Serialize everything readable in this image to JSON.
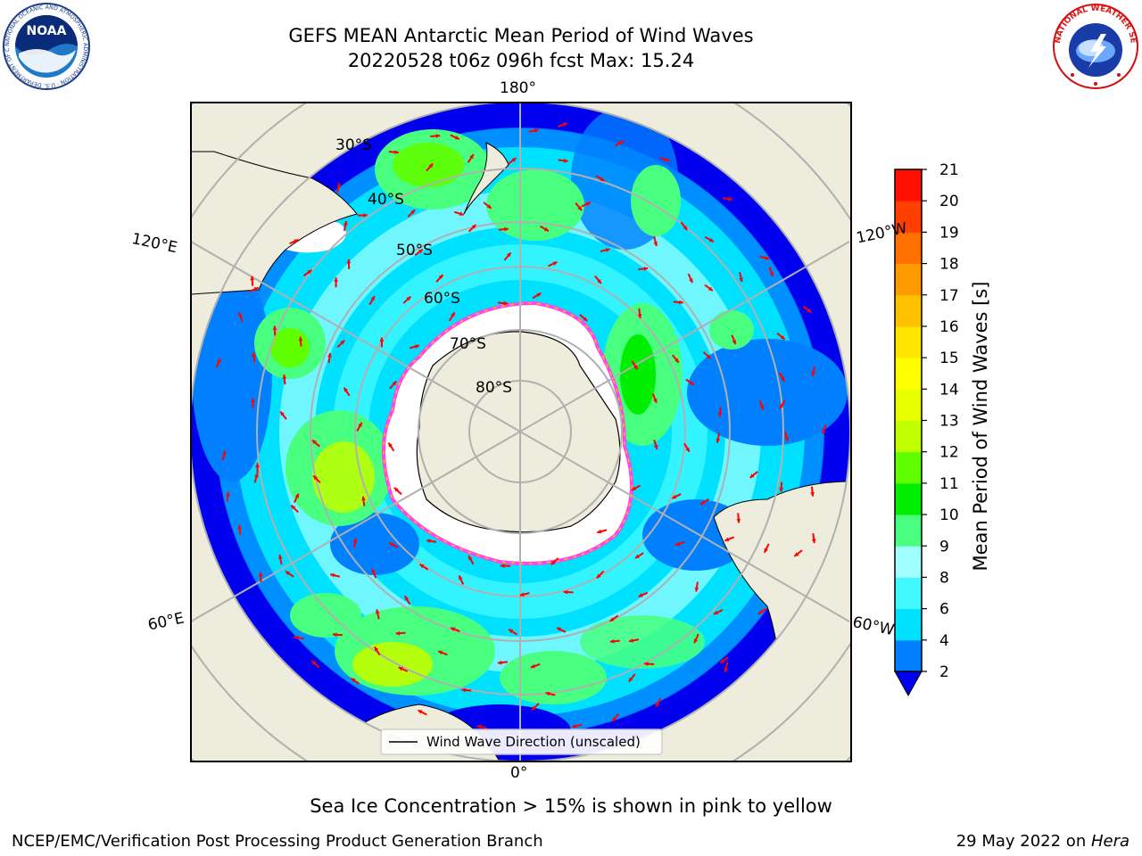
{
  "header": {
    "title_line1": "GEFS MEAN Antarctic Mean Period of Wind Waves",
    "title_line2": "20220528 t06z 096h fcst   Max: 15.24"
  },
  "logos": {
    "left": {
      "name": "noaa-logo",
      "text": "NOAA",
      "ring_text": "NATIONAL OCEANIC AND ATMOSPHERIC ADMINISTRATION · U.S. DEPARTMENT OF COMMERCE"
    },
    "right": {
      "name": "nws-logo",
      "ring_text": "NATIONAL WEATHER SERVICE"
    }
  },
  "map": {
    "longitude_labels": {
      "top": "180°",
      "bottom": "0°",
      "left_upper": "120°E",
      "left_lower": "60°E",
      "right_upper": "120°W",
      "right_lower": "60°W"
    },
    "latitude_labels": [
      "30°S",
      "40°S",
      "50°S",
      "60°S",
      "70°S",
      "80°S"
    ],
    "legend_label": "Wind Wave Direction (unscaled)",
    "colors": {
      "land": "#eeecdc",
      "ice": "#ffffff",
      "ice_edge": "#ff44ee",
      "grid": "#b0b0b0",
      "arrow": "#ff0000"
    }
  },
  "colorbar": {
    "label": "Mean Period of Wind Waves [s]",
    "ticks": [
      "2",
      "4",
      "6",
      "8",
      "9",
      "10",
      "11",
      "12",
      "13",
      "14",
      "15",
      "16",
      "17",
      "18",
      "19",
      "20",
      "21"
    ],
    "colors": [
      "#0000ee",
      "#0080ff",
      "#00e0ff",
      "#40f8ff",
      "#a0ffff",
      "#48ff80",
      "#00ee00",
      "#60ff00",
      "#c0ff00",
      "#e8ff00",
      "#ffff00",
      "#ffe600",
      "#ffc000",
      "#ff9a00",
      "#ff7000",
      "#ff4000",
      "#ff1000"
    ]
  },
  "footer": {
    "subtitle": "Sea Ice Concentration > 15% is shown in pink to yellow",
    "credit": "NCEP/EMC/Verification Post Processing Product Generation Branch",
    "date_prefix": "29 May 2022 on ",
    "date_machine": "Hera"
  }
}
